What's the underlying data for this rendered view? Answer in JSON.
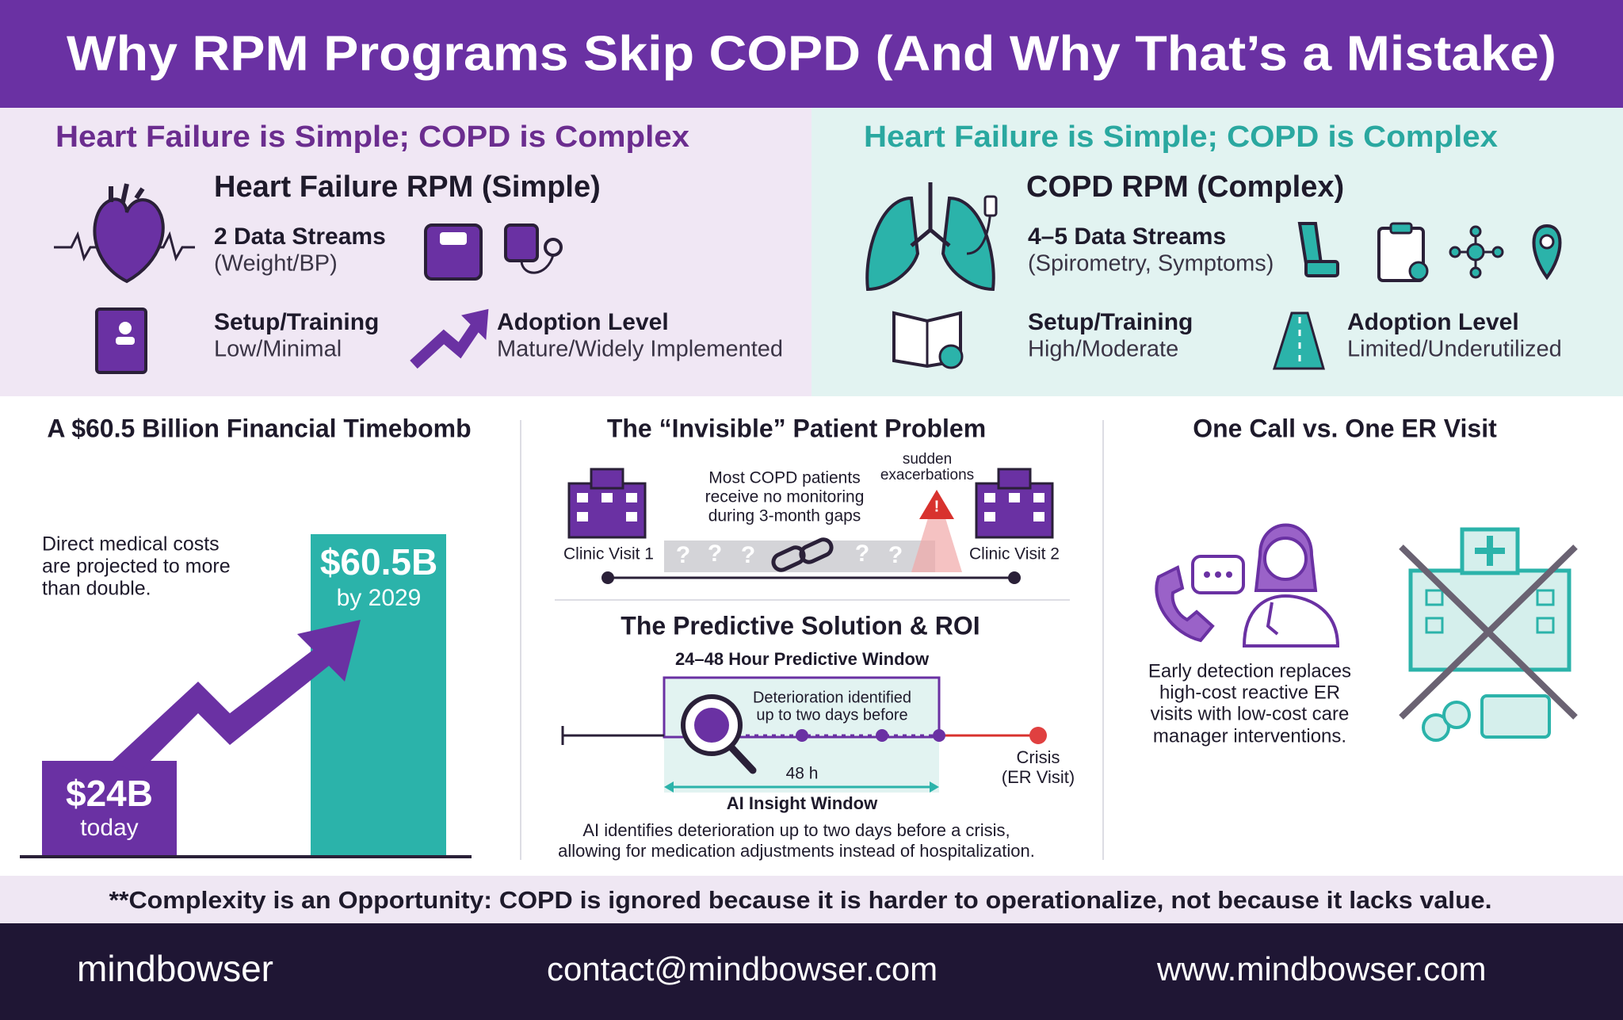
{
  "header": {
    "title": "Why RPM Programs Skip COPD (And Why That’s a Mistake)"
  },
  "comparison": {
    "left": {
      "heading": "Heart Failure is Simple; COPD is Complex",
      "rpm_title": "Heart Failure RPM (Simple)",
      "streams_title": "2 Data Streams",
      "streams_detail": "(Weight/BP)",
      "setup_label": "Setup/Training",
      "setup_value": "Low/Minimal",
      "adoption_label": "Adoption Level",
      "adoption_value": "Mature/Widely Implemented"
    },
    "right": {
      "heading": "Heart Failure is Simple; COPD is Complex",
      "rpm_title": "COPD RPM (Complex)",
      "streams_title": "4–5 Data Streams",
      "streams_detail": "(Spirometry, Symptoms)",
      "setup_label": "Setup/Training",
      "setup_value": "High/Moderate",
      "adoption_label": "Adoption Level",
      "adoption_value": "Limited/Underutilized"
    }
  },
  "financial": {
    "title": "A $60.5 Billion Financial Timebomb",
    "description": [
      "Direct medical costs",
      "are projected to more",
      "than double."
    ],
    "today": {
      "amount": "$24B",
      "label": "today"
    },
    "future": {
      "amount": "$60.5B",
      "label": "by 2029"
    }
  },
  "invisible": {
    "title": "The “Invisible” Patient Problem",
    "note": [
      "Most COPD patients",
      "receive no monitoring",
      "during 3-month gaps"
    ],
    "exacerbation": [
      "sudden",
      "exacerbations"
    ],
    "visit1": "Clinic Visit 1",
    "visit2": "Clinic Visit 2",
    "gap_marks": [
      "?",
      "?",
      "?",
      "?",
      "?"
    ]
  },
  "predictive": {
    "title": "The Predictive Solution & ROI",
    "window_title": "24–48 Hour Predictive Window",
    "box_text": [
      "Deterioration identified",
      "up to two days before"
    ],
    "duration": "48 h",
    "window_label": "AI Insight Window",
    "crisis": [
      "Crisis",
      "(ER Visit)"
    ],
    "summary": [
      "AI identifies deterioration up to two days before a crisis,",
      "allowing for medication adjustments instead of hospitalization."
    ]
  },
  "er": {
    "title": "One Call vs. One ER Visit",
    "description": [
      "Early detection replaces",
      "high-cost reactive ER",
      "visits with low-cost care",
      "manager interventions."
    ]
  },
  "banner": {
    "text": "**Complexity is an Opportunity: COPD is ignored because it is harder to operationalize, not because it lacks value."
  },
  "footer": {
    "brand": "mindbowser",
    "email": "contact@mindbowser.com",
    "website": "www.mindbowser.com"
  }
}
